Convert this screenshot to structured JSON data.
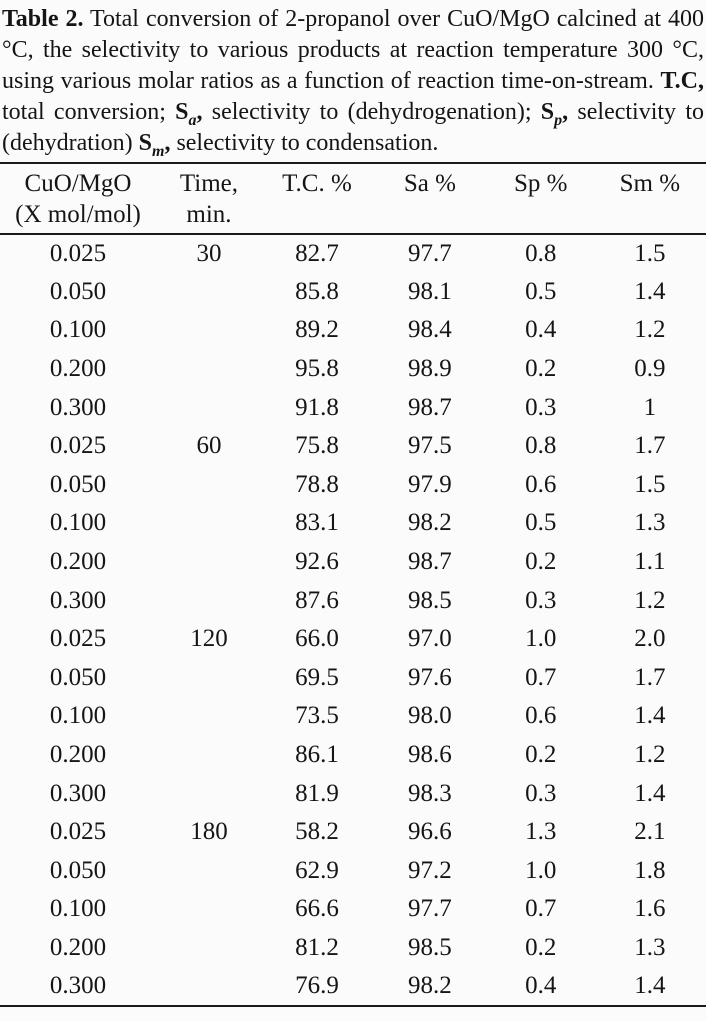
{
  "caption": {
    "label": "Table 2.",
    "body": " Total conversion of 2-propanol over CuO/MgO calcined at 400 °C, the selectivity to various products at reaction temperature 300 °C, using various molar ratios as a function of reaction time-on-stream. ",
    "tc": {
      "term": "T.C,",
      "desc": " total conversion; "
    },
    "sa": {
      "base": "S",
      "sub": "a",
      "comma": ",",
      "desc": " selectivity to (dehydrogenation); "
    },
    "sp": {
      "base": "S",
      "sub": "p",
      "comma": ",",
      "desc": " selectivity to (dehydration) "
    },
    "sm": {
      "base": "S",
      "sub": "m",
      "comma": ",",
      "desc": " selectivity to condensation."
    }
  },
  "table": {
    "headers": [
      {
        "line1": "CuO/MgO",
        "line2": "(X mol/mol)"
      },
      {
        "line1": "Time,",
        "line2": "min."
      },
      {
        "line1": "T.C. %",
        "line2": ""
      },
      {
        "line1": "Sa %",
        "line2": ""
      },
      {
        "line1": "Sp %",
        "line2": ""
      },
      {
        "line1": "Sm %",
        "line2": ""
      }
    ],
    "rows": [
      [
        "0.025",
        "30",
        "82.7",
        "97.7",
        "0.8",
        "1.5"
      ],
      [
        "0.050",
        "",
        "85.8",
        "98.1",
        "0.5",
        "1.4"
      ],
      [
        "0.100",
        "",
        "89.2",
        "98.4",
        "0.4",
        "1.2"
      ],
      [
        "0.200",
        "",
        "95.8",
        "98.9",
        "0.2",
        "0.9"
      ],
      [
        "0.300",
        "",
        "91.8",
        "98.7",
        "0.3",
        "1"
      ],
      [
        "0.025",
        "60",
        "75.8",
        "97.5",
        "0.8",
        "1.7"
      ],
      [
        "0.050",
        "",
        "78.8",
        "97.9",
        "0.6",
        "1.5"
      ],
      [
        "0.100",
        "",
        "83.1",
        "98.2",
        "0.5",
        "1.3"
      ],
      [
        "0.200",
        "",
        "92.6",
        "98.7",
        "0.2",
        "1.1"
      ],
      [
        "0.300",
        "",
        "87.6",
        "98.5",
        "0.3",
        "1.2"
      ],
      [
        "0.025",
        "120",
        "66.0",
        "97.0",
        "1.0",
        "2.0"
      ],
      [
        "0.050",
        "",
        "69.5",
        "97.6",
        "0.7",
        "1.7"
      ],
      [
        "0.100",
        "",
        "73.5",
        "98.0",
        "0.6",
        "1.4"
      ],
      [
        "0.200",
        "",
        "86.1",
        "98.6",
        "0.2",
        "1.2"
      ],
      [
        "0.300",
        "",
        "81.9",
        "98.3",
        "0.3",
        "1.4"
      ],
      [
        "0.025",
        "180",
        "58.2",
        "96.6",
        "1.3",
        "2.1"
      ],
      [
        "0.050",
        "",
        "62.9",
        "97.2",
        "1.0",
        "1.8"
      ],
      [
        "0.100",
        "",
        "66.6",
        "97.7",
        "0.7",
        "1.6"
      ],
      [
        "0.200",
        "",
        "81.2",
        "98.5",
        "0.2",
        "1.3"
      ],
      [
        "0.300",
        "",
        "76.9",
        "98.2",
        "0.4",
        "1.4"
      ]
    ]
  }
}
